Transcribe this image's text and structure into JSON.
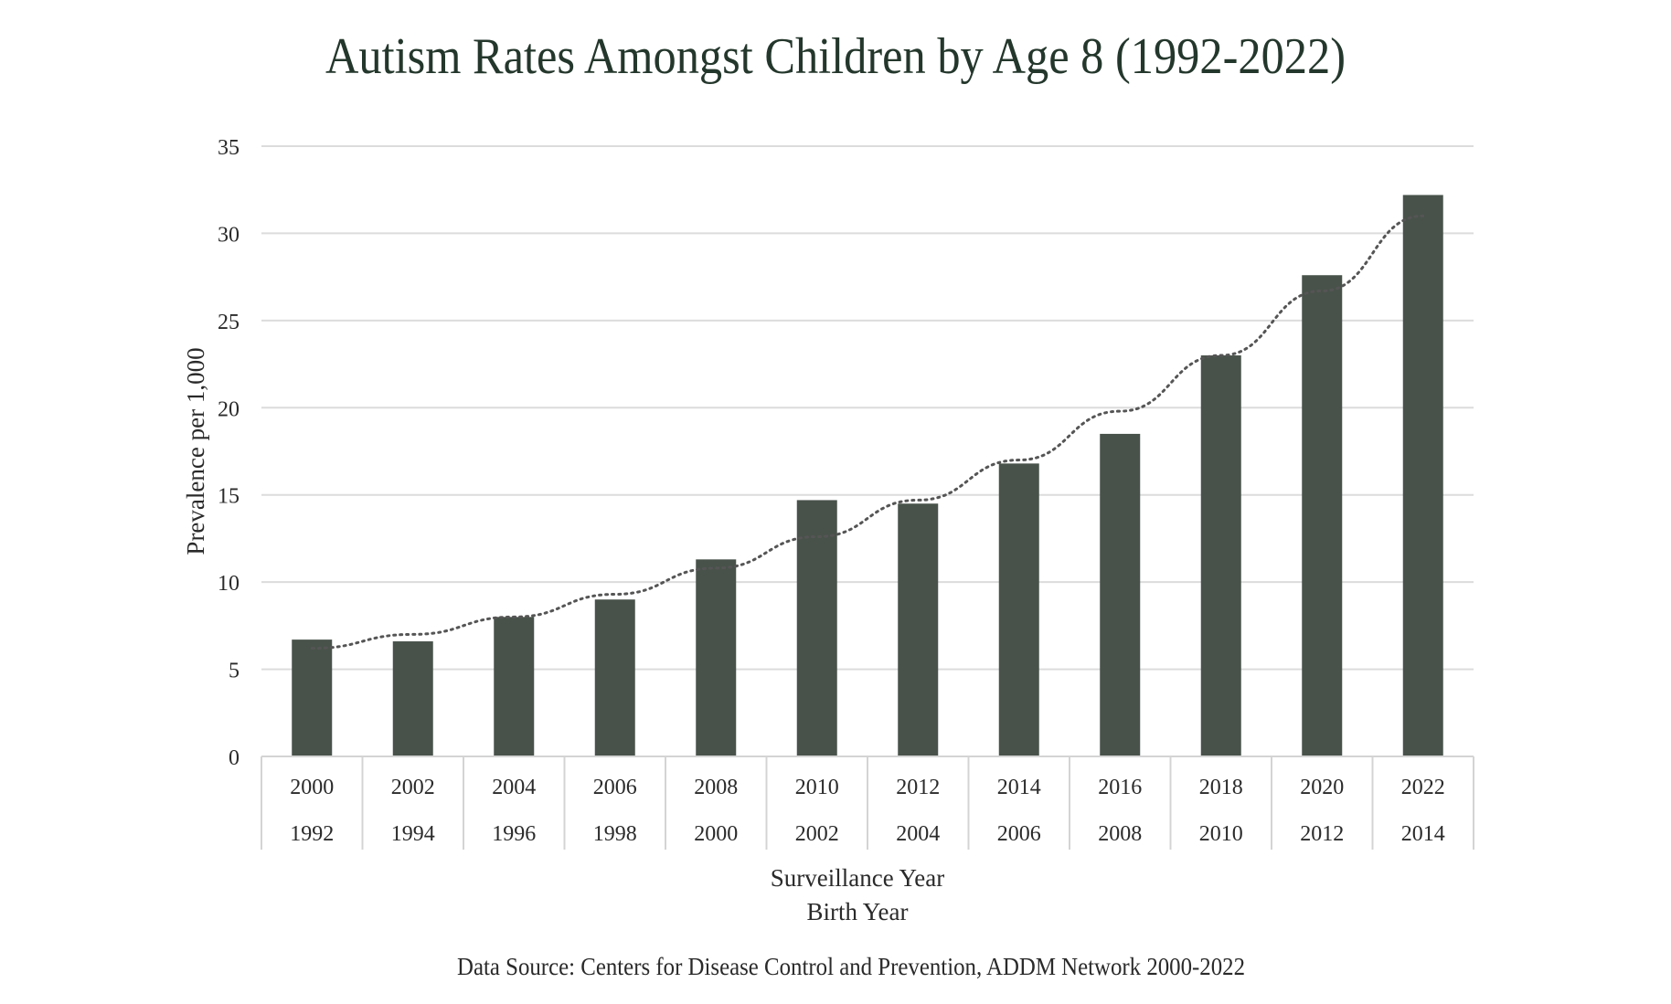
{
  "colors": {
    "bar": "#48524a",
    "title": "#24372c",
    "text": "#2a2a2a",
    "grid": "#dcdcdc",
    "axis_box": "#d4d4d4",
    "trendline": "#555555",
    "background": "#ffffff"
  },
  "chart_data": {
    "type": "bar",
    "title": "Autism Rates Amongst Children by Age 8 (1992-2022)",
    "ylabel": "Prevalence per 1,000",
    "xlabel": "Surveillance Year",
    "xlabel2": "Birth Year",
    "source": "Data Source: Centers for Disease Control and Prevention, ADDM Network 2000-2022",
    "ylim": [
      0,
      35
    ],
    "yticks": [
      0,
      5,
      10,
      15,
      20,
      25,
      30,
      35
    ],
    "grid": true,
    "legend": "none",
    "categories": [
      "2000",
      "2002",
      "2004",
      "2006",
      "2008",
      "2010",
      "2012",
      "2014",
      "2016",
      "2018",
      "2020",
      "2022"
    ],
    "categories_secondary": [
      "1992",
      "1994",
      "1996",
      "1998",
      "2000",
      "2002",
      "2004",
      "2006",
      "2008",
      "2010",
      "2012",
      "2014"
    ],
    "values": [
      6.7,
      6.6,
      8.0,
      9.0,
      11.3,
      14.7,
      14.5,
      16.8,
      18.5,
      23.0,
      27.6,
      32.2
    ],
    "trendline": {
      "type": "exponential",
      "style": "dotted",
      "values": [
        6.2,
        7.0,
        8.0,
        9.3,
        10.8,
        12.6,
        14.7,
        17.0,
        19.8,
        23.0,
        26.7,
        31.0
      ]
    }
  }
}
